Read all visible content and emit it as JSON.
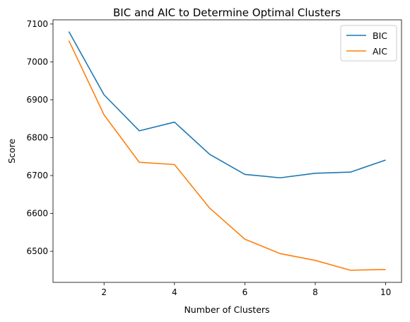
{
  "chart_data": {
    "type": "line",
    "title": "BIC and AIC to Determine Optimal Clusters",
    "xlabel": "Number of Clusters",
    "ylabel": "Score",
    "x": [
      1,
      2,
      3,
      4,
      5,
      6,
      7,
      8,
      9,
      10
    ],
    "series": [
      {
        "name": "BIC",
        "color": "#1f77b4",
        "values": [
          7080,
          6913,
          6818,
          6841,
          6756,
          6703,
          6694,
          6706,
          6709,
          6741
        ]
      },
      {
        "name": "AIC",
        "color": "#ff7f0e",
        "values": [
          7056,
          6860,
          6735,
          6729,
          6614,
          6532,
          6494,
          6476,
          6450,
          6452
        ]
      }
    ],
    "xlim": [
      0.55,
      10.45
    ],
    "ylim": [
      6418,
      7111
    ],
    "xticks": [
      2,
      4,
      6,
      8,
      10
    ],
    "yticks": [
      6500,
      6600,
      6700,
      6800,
      6900,
      7000,
      7100
    ],
    "grid": false,
    "legend_position": "top-right"
  }
}
